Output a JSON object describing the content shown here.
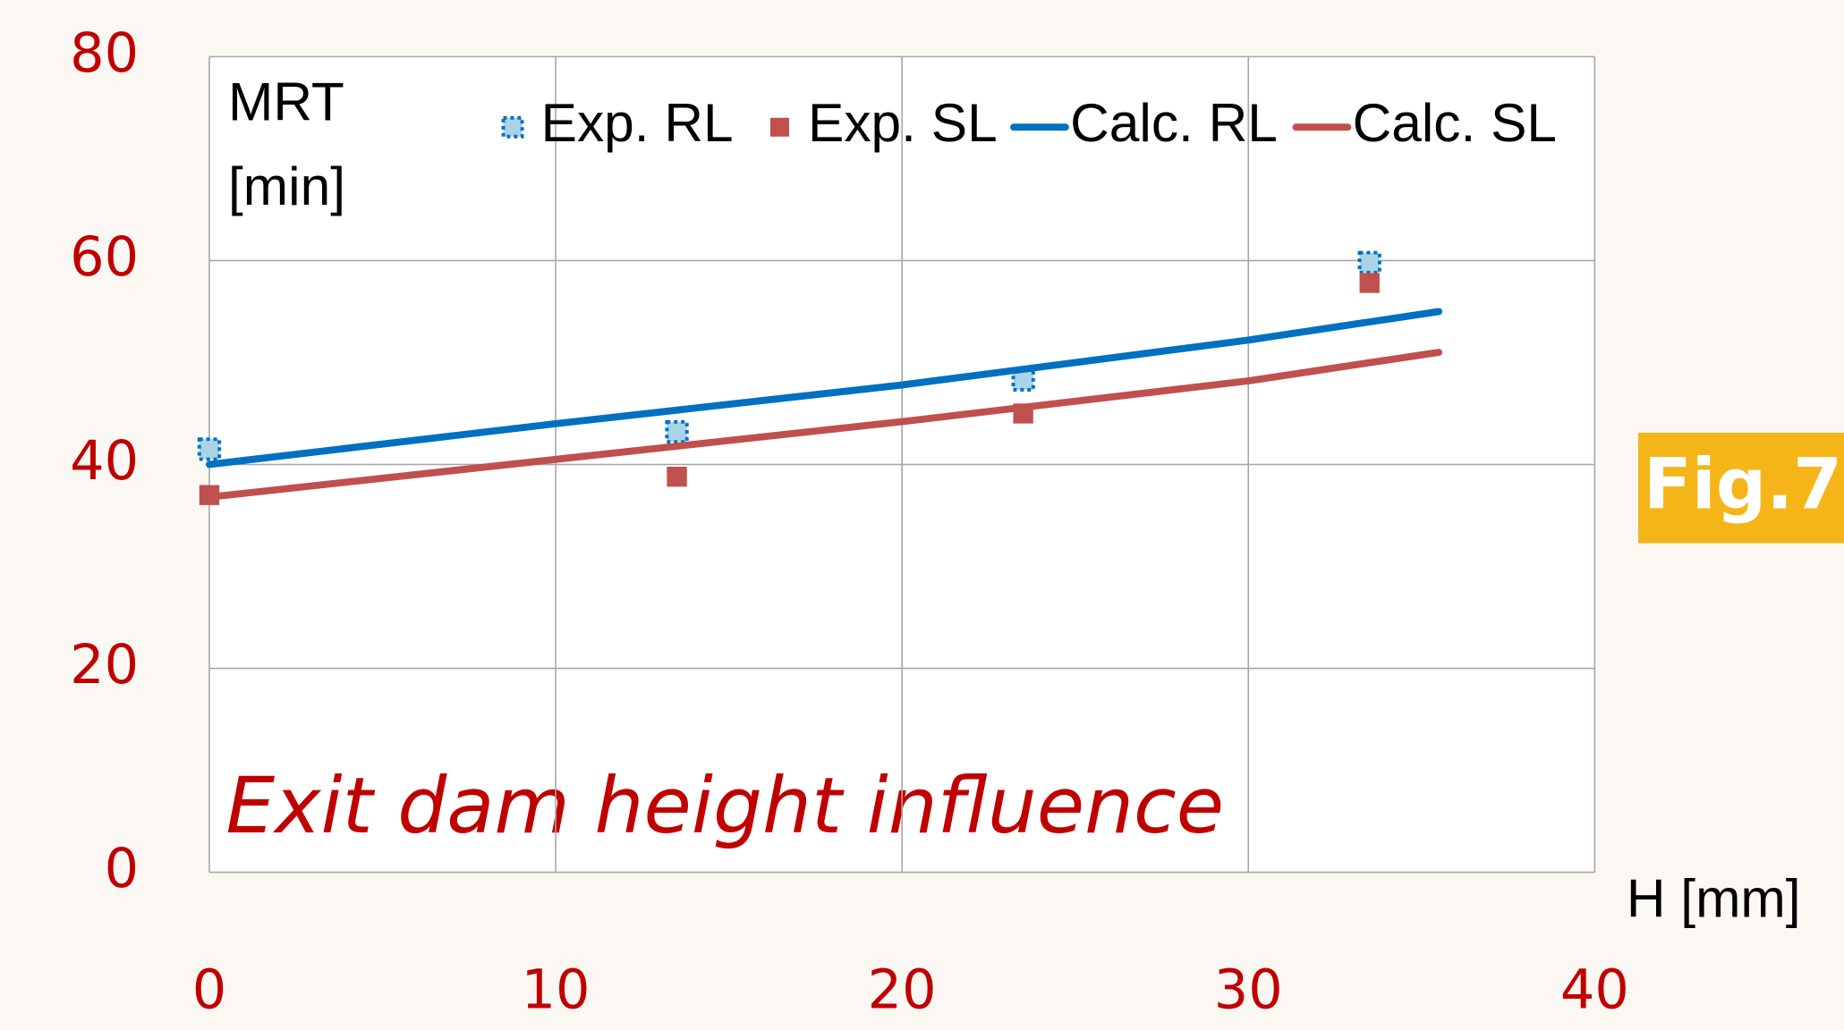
{
  "chart_data": {
    "type": "line",
    "y_label": [
      "MRT",
      "[min]"
    ],
    "x_label": "H [mm]",
    "annotation": "Exit dam height influence",
    "badge": "Fig.7",
    "xlim": [
      0,
      40
    ],
    "xticks": [
      0,
      10,
      20,
      30,
      40
    ],
    "ylim": [
      0,
      80
    ],
    "yticks": [
      0,
      20,
      40,
      60,
      80
    ],
    "grid": true,
    "series": [
      {
        "name": "Exp. RL",
        "mode": "markers",
        "color": "#0070c0",
        "x": [
          0,
          13.5,
          23.5,
          33.5
        ],
        "values": [
          41.5,
          43.2,
          48.3,
          59.8
        ]
      },
      {
        "name": "Exp. SL",
        "mode": "markers",
        "color": "#c0504d",
        "x": [
          0,
          13.5,
          23.5,
          33.5
        ],
        "values": [
          37,
          38.8,
          45,
          57.8
        ]
      },
      {
        "name": "Calc. RL",
        "mode": "line",
        "color": "#0070c0",
        "x": [
          0,
          10,
          20,
          30,
          35.5
        ],
        "values": [
          40,
          44,
          47.8,
          52.2,
          55
        ]
      },
      {
        "name": "Calc. SL",
        "mode": "line",
        "color": "#c0504d",
        "x": [
          0,
          10,
          20,
          30,
          35.5
        ],
        "values": [
          36.8,
          40.5,
          44.2,
          48.2,
          51
        ]
      }
    ]
  }
}
